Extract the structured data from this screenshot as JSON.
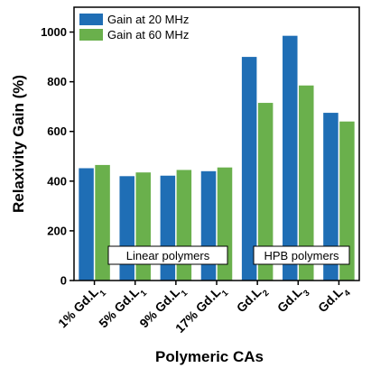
{
  "chart_data": {
    "type": "bar",
    "xlabel": "Polymeric CAs",
    "ylabel": "Relaxivity Gain (%)",
    "ylim": [
      0,
      1100
    ],
    "yticks": [
      0,
      200,
      400,
      600,
      800,
      1000
    ],
    "categories": [
      {
        "base": "1% Gd.L",
        "sub": "1"
      },
      {
        "base": "5% Gd.L",
        "sub": "1"
      },
      {
        "base": "9% Gd.L",
        "sub": "1"
      },
      {
        "base": "17% Gd.L",
        "sub": "1"
      },
      {
        "base": "Gd.L",
        "sub": "2"
      },
      {
        "base": "Gd.L",
        "sub": "3"
      },
      {
        "base": "Gd.L",
        "sub": "4"
      }
    ],
    "series": [
      {
        "name": "Gain at 20 MHz",
        "color": "#1f6eb5",
        "values": [
          452,
          420,
          422,
          440,
          900,
          985,
          675
        ]
      },
      {
        "name": "Gain at 60 MHz",
        "color": "#6ab04c",
        "values": [
          465,
          435,
          445,
          455,
          715,
          785,
          640
        ]
      }
    ],
    "legend_position": "top-left",
    "annotations": [
      {
        "text": "Linear polymers"
      },
      {
        "text": "HPB polymers"
      }
    ],
    "grid": false
  }
}
